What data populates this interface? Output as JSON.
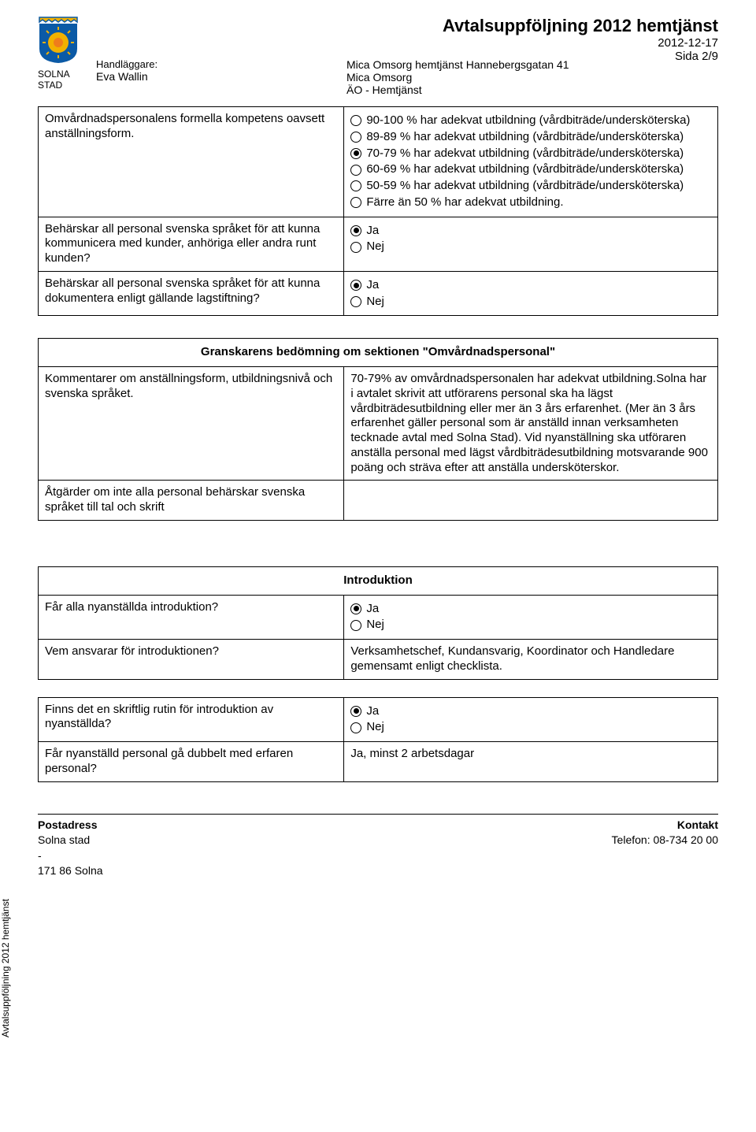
{
  "header": {
    "org_label": "SOLNA STAD",
    "title": "Avtalsuppföljning 2012 hemtjänst",
    "date": "2012-12-17",
    "page_of": "Sida 2/9",
    "handlaggare_label": "Handläggare:",
    "handlaggare_name": "Eva Wallin",
    "subject_line1": "Mica Omsorg hemtjänst Hannebergsgatan 41",
    "subject_line2": "Mica Omsorg",
    "subject_line3": "ÄO - Hemtjänst",
    "logo_colors": {
      "shield": "#0b5aa6",
      "sun": "#f2b100",
      "face": "#ef7d1c"
    }
  },
  "section1": {
    "rows": [
      {
        "question": "Omvårdnadspersonalens formella kompetens oavsett anställningsform.",
        "options": [
          {
            "label": "90-100 % har adekvat utbildning (vårdbiträde/undersköterska)",
            "selected": false
          },
          {
            "label": "89-89 % har adekvat utbildning (vårdbiträde/undersköterska)",
            "selected": false
          },
          {
            "label": "70-79 % har adekvat utbildning (vårdbiträde/undersköterska)",
            "selected": true
          },
          {
            "label": "60-69 % har adekvat utbildning (vårdbiträde/undersköterska)",
            "selected": false
          },
          {
            "label": "50-59 % har adekvat utbildning (vårdbiträde/undersköterska)",
            "selected": false
          },
          {
            "label": "Färre än 50 % har adekvat utbildning.",
            "selected": false
          }
        ]
      },
      {
        "question": "Behärskar all personal svenska språket för att kunna kommunicera med kunder, anhöriga eller andra runt kunden?",
        "options": [
          {
            "label": "Ja",
            "selected": true
          },
          {
            "label": "Nej",
            "selected": false
          }
        ]
      },
      {
        "question": "Behärskar all personal svenska språket för att kunna dokumentera enligt gällande lagstiftning?",
        "options": [
          {
            "label": "Ja",
            "selected": true
          },
          {
            "label": "Nej",
            "selected": false
          }
        ]
      }
    ]
  },
  "section2": {
    "title": "Granskarens bedömning om sektionen \"Omvårdnadspersonal\"",
    "rows": [
      {
        "question": "Kommentarer om anställningsform, utbildningsnivå och svenska språket.",
        "answer": "70-79% av omvårdnadspersonalen har adekvat utbildning.Solna har i avtalet skrivit att utförarens personal ska ha lägst vårdbiträdesutbildning  eller mer än 3 års erfarenhet. (Mer än 3 års erfarenhet gäller personal som är anställd innan verksamheten tecknade avtal med Solna Stad). Vid nyanställning ska utföraren anställa personal med lägst vårdbiträdesutbildning motsvarande 900 poäng och sträva efter att anställa undersköterskor."
      },
      {
        "question": "Åtgärder om inte alla personal behärskar svenska språket till tal och skrift",
        "answer": ""
      }
    ]
  },
  "section3": {
    "title": "Introduktion",
    "rows": [
      {
        "question": "Får alla nyanställda introduktion?",
        "type": "radio",
        "options": [
          {
            "label": "Ja",
            "selected": true
          },
          {
            "label": "Nej",
            "selected": false
          }
        ]
      },
      {
        "question": "Vem ansvarar för introduktionen?",
        "type": "text",
        "answer": "Verksamhetschef, Kundansvarig, Koordinator och Handledare gemensamt enligt checklista."
      }
    ]
  },
  "section4": {
    "rows": [
      {
        "question": "Finns det en skriftlig rutin för introduktion av nyanställda?",
        "type": "radio",
        "options": [
          {
            "label": "Ja",
            "selected": true
          },
          {
            "label": "Nej",
            "selected": false
          }
        ]
      },
      {
        "question": "Får nyanställd personal gå dubbelt med erfaren personal?",
        "type": "text",
        "answer": "Ja, minst 2 arbetsdagar"
      }
    ]
  },
  "sidetext": "Avtalsuppföljning 2012 hemtjänst",
  "footer": {
    "left_head": "Postadress",
    "left_line1": "Solna stad",
    "left_line2": "-",
    "left_line3": "171 86 Solna",
    "right_head": "Kontakt",
    "right_line1": "Telefon: 08-734 20 00"
  }
}
